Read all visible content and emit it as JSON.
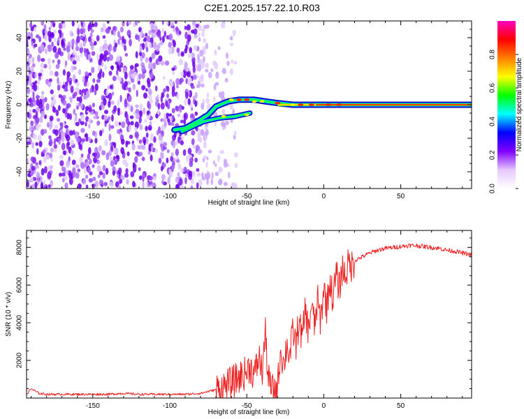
{
  "title": "C2E1.2025.157.22.10.R03",
  "chart_data": [
    {
      "type": "heatmap",
      "xlabel": "Height of straight line (km)",
      "ylabel": "Frequency (Hz)",
      "xlim": [
        -193,
        96
      ],
      "ylim": [
        -50,
        50
      ],
      "x_ticks": [
        -150,
        -100,
        -50,
        0,
        50
      ],
      "y_ticks": [
        -40,
        -20,
        0,
        20,
        40
      ],
      "colorbar": {
        "label": "Normalized spectral amplitude",
        "range": [
          0,
          1
        ],
        "ticks": [
          "0.0",
          "0.2",
          "0.4",
          "0.6",
          "0.8"
        ],
        "colormap": [
          "#ffffff",
          "#e6c8ff",
          "#8000ff",
          "#0000ff",
          "#00ffff",
          "#00ff00",
          "#ffff00",
          "#ff8000",
          "#ff0000",
          "#ff00c0"
        ]
      },
      "noise_region_km": [
        -193,
        -75
      ],
      "signal_track": [
        {
          "x": -97,
          "y": -15
        },
        {
          "x": -90,
          "y": -14
        },
        {
          "x": -82,
          "y": -10
        },
        {
          "x": -75,
          "y": -6
        },
        {
          "x": -70,
          "y": -1
        },
        {
          "x": -62,
          "y": 2
        },
        {
          "x": -55,
          "y": 3
        },
        {
          "x": -45,
          "y": 3
        },
        {
          "x": -38,
          "y": 2
        },
        {
          "x": -30,
          "y": 1
        },
        {
          "x": -20,
          "y": 0
        },
        {
          "x": -10,
          "y": 0
        },
        {
          "x": 0,
          "y": 0
        },
        {
          "x": 96,
          "y": 0
        }
      ],
      "lower_branch": [
        {
          "x": -92,
          "y": -16
        },
        {
          "x": -85,
          "y": -13
        },
        {
          "x": -78,
          "y": -10
        },
        {
          "x": -68,
          "y": -8
        },
        {
          "x": -58,
          "y": -7
        },
        {
          "x": -48,
          "y": -5
        }
      ]
    },
    {
      "type": "line",
      "xlabel": "Height of straight line (km)",
      "ylabel": "SNR (10 * v/v)",
      "xlim": [
        -193,
        96
      ],
      "ylim": [
        0,
        8900
      ],
      "x_ticks": [
        -150,
        -100,
        -50,
        0,
        50
      ],
      "y_ticks": [
        2000,
        4000,
        6000,
        8000
      ],
      "color": "#ee2222",
      "series": [
        {
          "x": [
            -193,
            -190,
            -185,
            -180,
            -170,
            -160,
            -150,
            -140,
            -130,
            -120,
            -110,
            -100,
            -90,
            -80,
            -75,
            -70,
            -65,
            -60,
            -55,
            -50,
            -48,
            -45,
            -42,
            -40,
            -38,
            -36,
            -34,
            -32,
            -30,
            -28,
            -26,
            -24,
            -22,
            -20,
            -18,
            -16,
            -14,
            -12,
            -10,
            -8,
            -6,
            -4,
            -2,
            0,
            2,
            4,
            6,
            8,
            10,
            12,
            14,
            16,
            18,
            20,
            25,
            30,
            35,
            40,
            45,
            50,
            55,
            60,
            65,
            70,
            75,
            80,
            85,
            90,
            96
          ],
          "values": [
            200,
            500,
            250,
            200,
            200,
            200,
            200,
            200,
            250,
            200,
            200,
            200,
            200,
            250,
            350,
            450,
            600,
            800,
            1100,
            1400,
            1700,
            1200,
            2200,
            1300,
            3500,
            1000,
            500,
            300,
            600,
            2600,
            1700,
            2900,
            2200,
            3600,
            2800,
            4200,
            3000,
            4800,
            3500,
            5000,
            3800,
            5200,
            4000,
            5900,
            4800,
            6300,
            5200,
            6600,
            5800,
            6900,
            6500,
            7100,
            7000,
            7300,
            7500,
            7700,
            7850,
            7950,
            8000,
            8050,
            8100,
            8100,
            8050,
            8000,
            7950,
            7850,
            7800,
            7700,
            7600
          ]
        }
      ]
    }
  ]
}
